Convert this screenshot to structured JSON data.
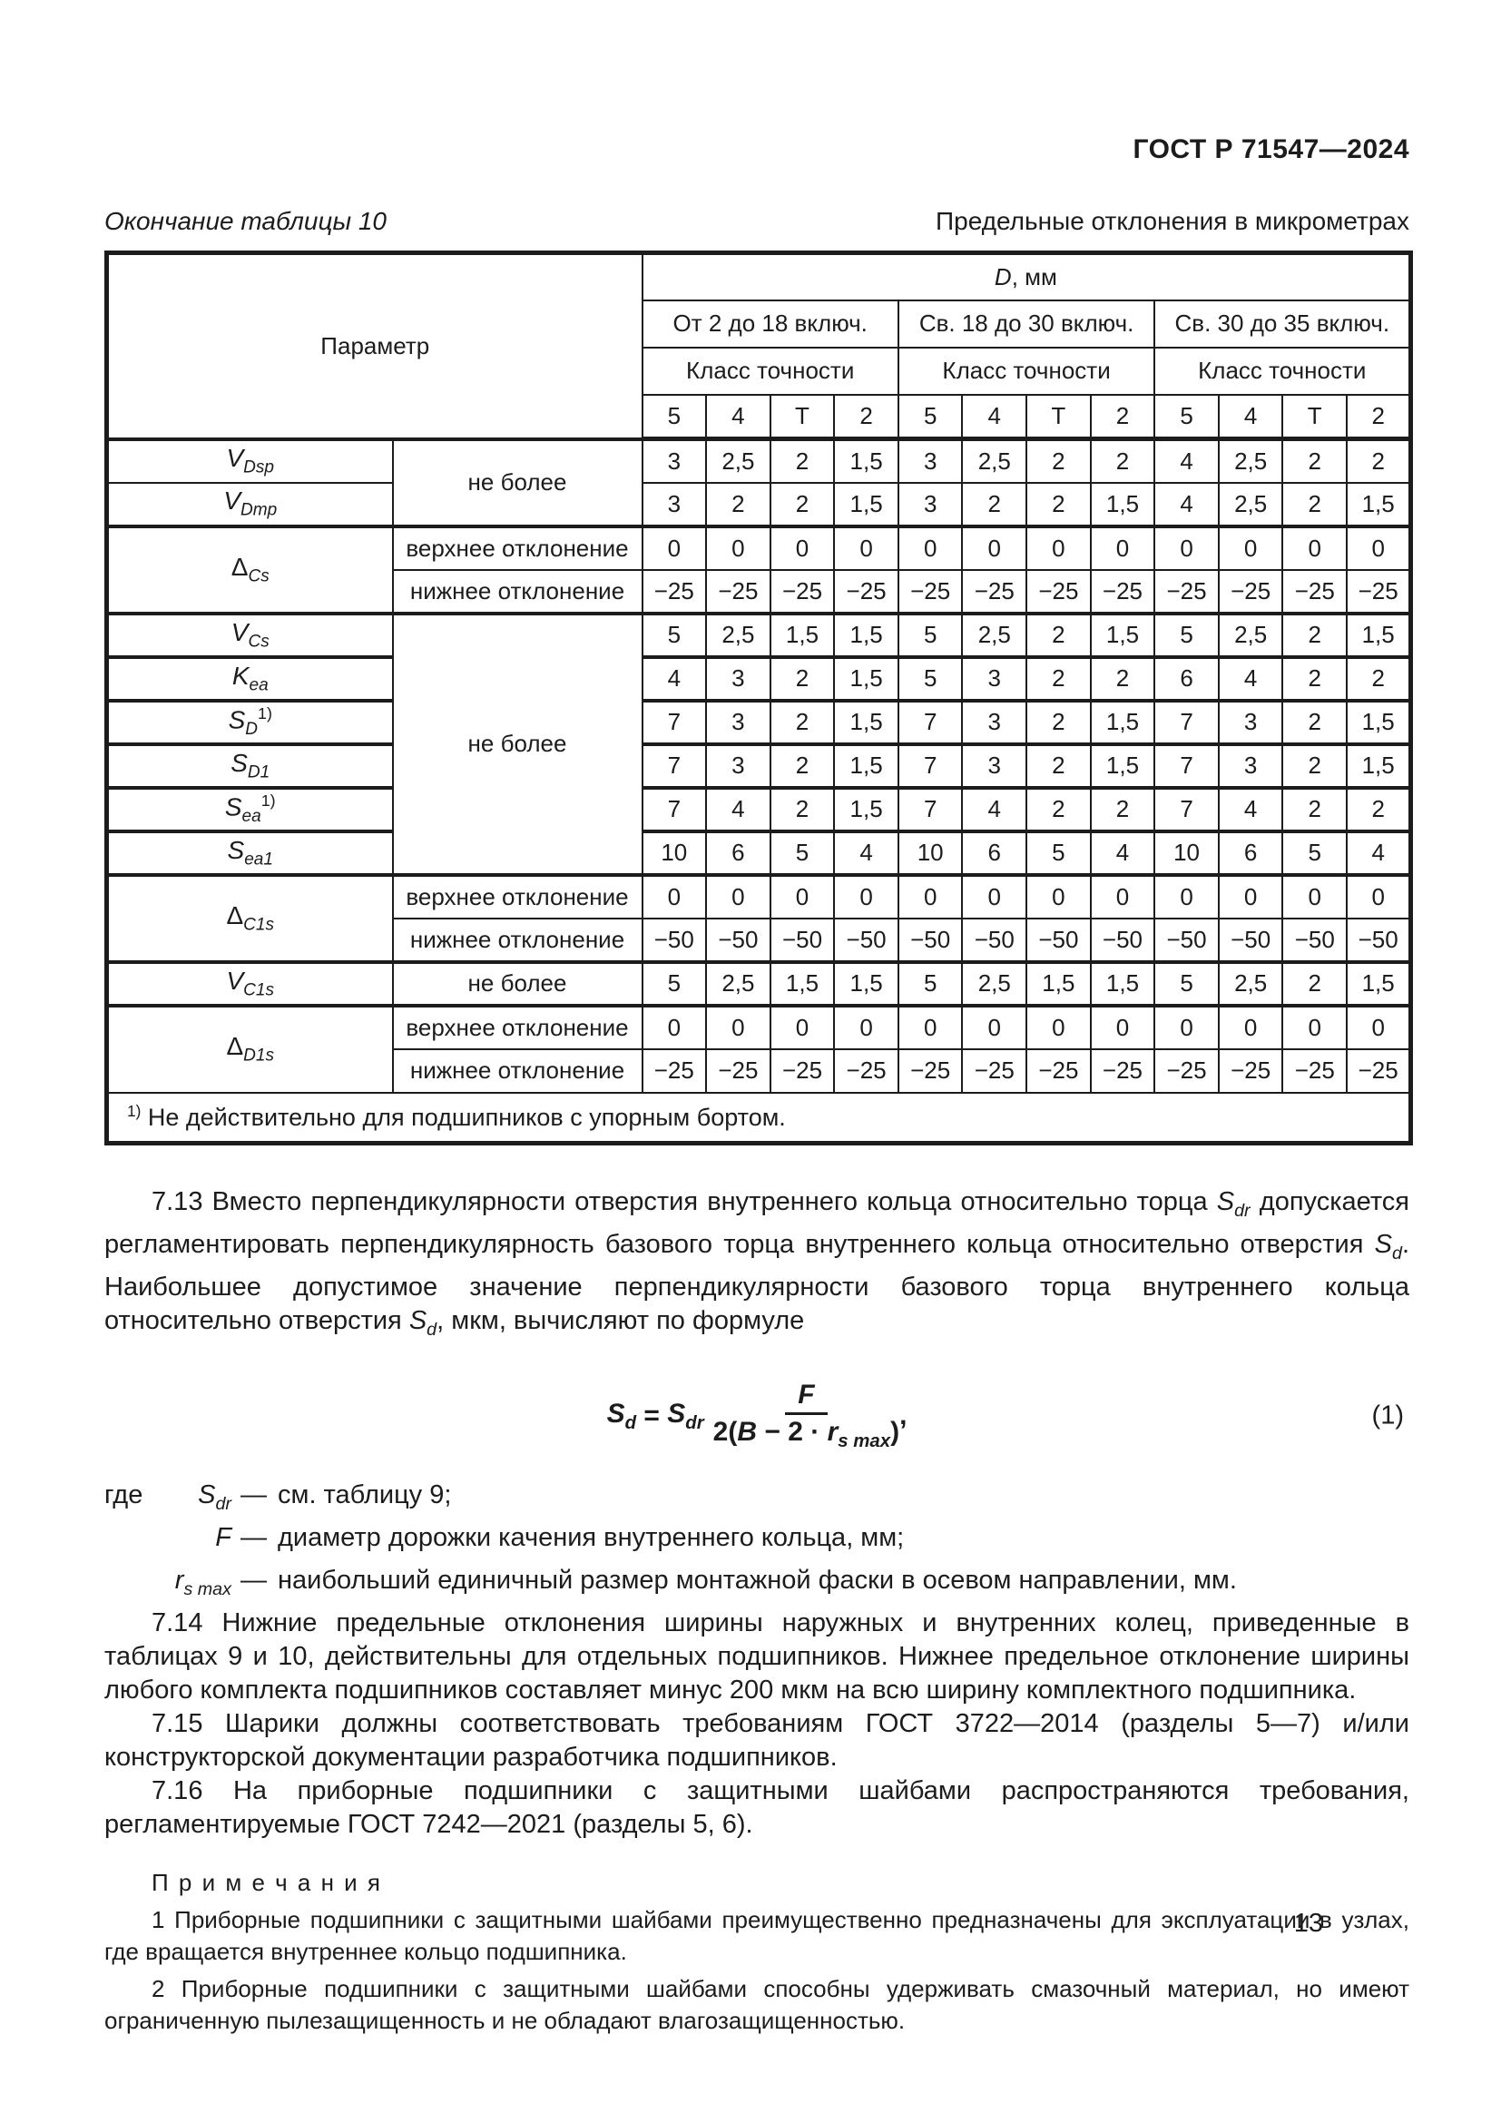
{
  "header": {
    "doc_code": "ГОСТ Р 71547—2024"
  },
  "page": {
    "number": "13"
  },
  "table": {
    "caption_left": "Окончание таблицы 10",
    "caption_right": "Предельные отклонения в микрометрах",
    "header": {
      "param_label": "Параметр",
      "d_label_base": "D",
      "d_label_rest": ", мм",
      "ranges": [
        "От 2 до 18 включ.",
        "Св. 18 до 30 включ.",
        "Св. 30 до 35 включ."
      ],
      "class_label": "Класс точности",
      "classes": [
        "5",
        "4",
        "Т",
        "2"
      ]
    },
    "rows": [
      {
        "sep": "thick",
        "name": {
          "b": "V",
          "sub": "Dsp"
        },
        "cond": {
          "text": "не более",
          "rowspan": 2
        },
        "values": [
          "3",
          "2,5",
          "2",
          "1,5",
          "3",
          "2,5",
          "2",
          "2",
          "4",
          "2,5",
          "2",
          "2"
        ]
      },
      {
        "sep": "thin",
        "name": {
          "b": "V",
          "sub": "Dmp"
        },
        "values": [
          "3",
          "2",
          "2",
          "1,5",
          "3",
          "2",
          "2",
          "1,5",
          "4",
          "2,5",
          "2",
          "1,5"
        ]
      },
      {
        "sep": "thick",
        "name": {
          "b": "Δ",
          "sub": "Cs",
          "rowspan": 2
        },
        "cond": {
          "text": "верхнее отклонение"
        },
        "values": [
          "0",
          "0",
          "0",
          "0",
          "0",
          "0",
          "0",
          "0",
          "0",
          "0",
          "0",
          "0"
        ]
      },
      {
        "sep": "thin",
        "cond": {
          "text": "нижнее отклонение"
        },
        "values": [
          "−25",
          "−25",
          "−25",
          "−25",
          "−25",
          "−25",
          "−25",
          "−25",
          "−25",
          "−25",
          "−25",
          "−25"
        ]
      },
      {
        "sep": "thick",
        "name": {
          "b": "V",
          "sub": "Cs"
        },
        "cond": {
          "text": "не более",
          "rowspan": 6
        },
        "values": [
          "5",
          "2,5",
          "1,5",
          "1,5",
          "5",
          "2,5",
          "2",
          "1,5",
          "5",
          "2,5",
          "2",
          "1,5"
        ]
      },
      {
        "sep": "thick",
        "name": {
          "b": "K",
          "sub": "ea"
        },
        "values": [
          "4",
          "3",
          "2",
          "1,5",
          "5",
          "3",
          "2",
          "2",
          "6",
          "4",
          "2",
          "2"
        ]
      },
      {
        "sep": "thick",
        "name": {
          "b": "S",
          "sub": "D",
          "sup": "1)"
        },
        "values": [
          "7",
          "3",
          "2",
          "1,5",
          "7",
          "3",
          "2",
          "1,5",
          "7",
          "3",
          "2",
          "1,5"
        ]
      },
      {
        "sep": "thick",
        "name": {
          "b": "S",
          "sub": "D1"
        },
        "values": [
          "7",
          "3",
          "2",
          "1,5",
          "7",
          "3",
          "2",
          "1,5",
          "7",
          "3",
          "2",
          "1,5"
        ]
      },
      {
        "sep": "thick",
        "name": {
          "b": "S",
          "sub": "ea",
          "sup": "1)"
        },
        "values": [
          "7",
          "4",
          "2",
          "1,5",
          "7",
          "4",
          "2",
          "2",
          "7",
          "4",
          "2",
          "2"
        ]
      },
      {
        "sep": "thick",
        "name": {
          "b": "S",
          "sub": "ea1"
        },
        "values": [
          "10",
          "6",
          "5",
          "4",
          "10",
          "6",
          "5",
          "4",
          "10",
          "6",
          "5",
          "4"
        ]
      },
      {
        "sep": "thick",
        "name": {
          "b": "Δ",
          "sub": "C1s",
          "rowspan": 2
        },
        "cond": {
          "text": "верхнее отклонение"
        },
        "values": [
          "0",
          "0",
          "0",
          "0",
          "0",
          "0",
          "0",
          "0",
          "0",
          "0",
          "0",
          "0"
        ]
      },
      {
        "sep": "thin",
        "cond": {
          "text": "нижнее отклонение"
        },
        "values": [
          "−50",
          "−50",
          "−50",
          "−50",
          "−50",
          "−50",
          "−50",
          "−50",
          "−50",
          "−50",
          "−50",
          "−50"
        ]
      },
      {
        "sep": "thick",
        "name": {
          "b": "V",
          "sub": "C1s"
        },
        "cond": {
          "text": "не более"
        },
        "values": [
          "5",
          "2,5",
          "1,5",
          "1,5",
          "5",
          "2,5",
          "1,5",
          "1,5",
          "5",
          "2,5",
          "2",
          "1,5"
        ]
      },
      {
        "sep": "thick",
        "name": {
          "b": "Δ",
          "sub": "D1s",
          "rowspan": 2
        },
        "cond": {
          "text": "верхнее отклонение"
        },
        "values": [
          "0",
          "0",
          "0",
          "0",
          "0",
          "0",
          "0",
          "0",
          "0",
          "0",
          "0",
          "0"
        ]
      },
      {
        "sep": "thin",
        "cond": {
          "text": "нижнее отклонение"
        },
        "values": [
          "−25",
          "−25",
          "−25",
          "−25",
          "−25",
          "−25",
          "−25",
          "−25",
          "−25",
          "−25",
          "−25",
          "−25"
        ]
      }
    ],
    "footnote": {
      "sup": "1)",
      "text": " Не действительно для подшипников с упорным бортом."
    }
  },
  "sections": {
    "p713": {
      "segments": [
        {
          "t": "7.13  Вместо перпендикулярности отверстия внутреннего кольца относительно торца "
        },
        {
          "v": "S",
          "sub": "dr"
        },
        {
          "t": " допускается регламентировать перпендикулярность базового торца внутреннего кольца относительно отверстия "
        },
        {
          "v": "S",
          "sub": "d"
        },
        {
          "t": ". Наибольшее допустимое значение перпендикулярности базового торца внутреннего кольца относительно отверстия "
        },
        {
          "v": "S",
          "sub": "d"
        },
        {
          "t": ", мкм, вычисляют по формуле"
        }
      ]
    },
    "p714": "7.14  Нижние предельные отклонения ширины наружных и внутренних колец, приведенные в таблицах 9 и 10, действительны для отдельных подшипников. Нижнее предельное отклонение ширины любого комплекта подшипников составляет минус 200 мкм на всю ширину комплектного подшипника.",
    "p715": "7.15  Шарики должны соответствовать требованиям ГОСТ 3722—2014 (разделы 5—7) и/или конструкторской документации разработчика подшипников.",
    "p716": "7.16  На приборные подшипники с защитными шайбами распространяются требования, регламентируемые ГОСТ 7242—2021 (разделы 5, 6)."
  },
  "formula": {
    "lhs_base": "S",
    "lhs_sub": "d",
    "eq": " = ",
    "rhs_base": "S",
    "rhs_sub": "dr",
    "num": "F",
    "den_pre": "2(",
    "den_B": "B",
    "den_mid": " − 2 · ",
    "den_r": "r",
    "den_r_sub": "s max",
    "den_post": ")",
    "comma": ",",
    "number": "(1)"
  },
  "where": {
    "lead": "где",
    "items": [
      {
        "term_base": "S",
        "term_sub": "dr",
        "dash": "—",
        "def": "см. таблицу 9;"
      },
      {
        "term_base": "F",
        "term_sub": "",
        "dash": "—",
        "def": "диаметр дорожки качения внутреннего кольца, мм;"
      },
      {
        "term_base": "r",
        "term_sub": "s max",
        "dash": "—",
        "def": "наибольший единичный размер монтажной фаски в осевом направлении, мм."
      }
    ]
  },
  "notes": {
    "title": "П р и м е ч а н и я",
    "items": [
      "1  Приборные подшипники с защитными шайбами преимущественно предназначены для эксплуатации в узлах, где вращается внутреннее кольцо подшипника.",
      "2  Приборные подшипники с защитными шайбами способны удерживать смазочный материал, но имеют ограниченную пылезащищенность и не обладают влагозащищенностью."
    ]
  }
}
